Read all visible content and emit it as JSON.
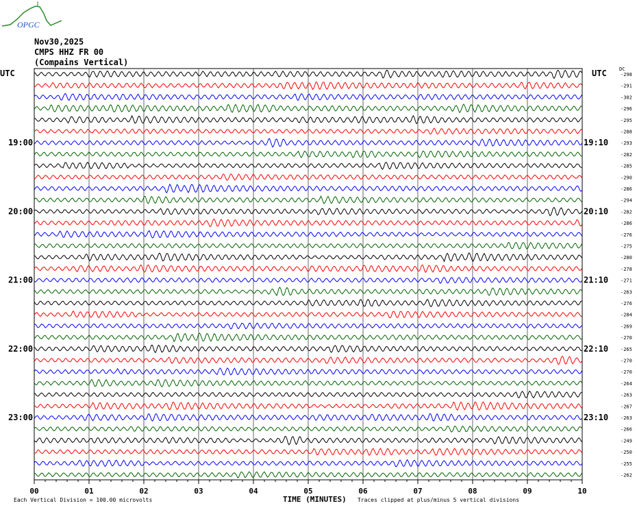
{
  "header": {
    "date": "Nov30,2025",
    "station": "CMPS HHZ FR 00",
    "site": "(Compains Vertical)",
    "logo_text": "OPGC"
  },
  "utc_left": "UTC",
  "utc_right": "UTC",
  "dc_label": "DC",
  "chart_data": {
    "type": "line",
    "title": "CMPS HHZ FR 00 (Compains Vertical) Nov30,2025",
    "xlabel": "TIME (MINUTES)",
    "xlim": [
      0,
      10
    ],
    "x_ticks": [
      "00",
      "01",
      "02",
      "03",
      "04",
      "05",
      "06",
      "07",
      "08",
      "09",
      "10"
    ],
    "rows": 36,
    "minutes_per_row": 10,
    "left_hour_labels": [
      {
        "row": 6,
        "label": "19:00"
      },
      {
        "row": 12,
        "label": "20:00"
      },
      {
        "row": 18,
        "label": "21:00"
      },
      {
        "row": 24,
        "label": "22:00"
      },
      {
        "row": 30,
        "label": "23:00"
      }
    ],
    "right_labels": [
      {
        "row": 6,
        "label": "19:10"
      },
      {
        "row": 12,
        "label": "20:10"
      },
      {
        "row": 18,
        "label": "21:10"
      },
      {
        "row": 24,
        "label": "22:10"
      },
      {
        "row": 30,
        "label": "23:10"
      }
    ],
    "dc_offsets": [
      -298,
      -291,
      -302,
      -296,
      -295,
      -288,
      -293,
      -282,
      -285,
      -290,
      -286,
      -294,
      -282,
      -286,
      -276,
      -275,
      -280,
      -278,
      -271,
      -263,
      -276,
      -284,
      -269,
      -270,
      -265,
      -270,
      -270,
      -264,
      -263,
      -267,
      -263,
      -266,
      -249,
      -250,
      -255,
      -262
    ],
    "trace_colors": [
      "#000000",
      "#ff0000",
      "#0000ff",
      "#006400"
    ],
    "scale_note": "Each Vertical Division =  100.00 microvolts",
    "clip_note": "Traces clipped at plus/minus 5 vertical divisions"
  }
}
